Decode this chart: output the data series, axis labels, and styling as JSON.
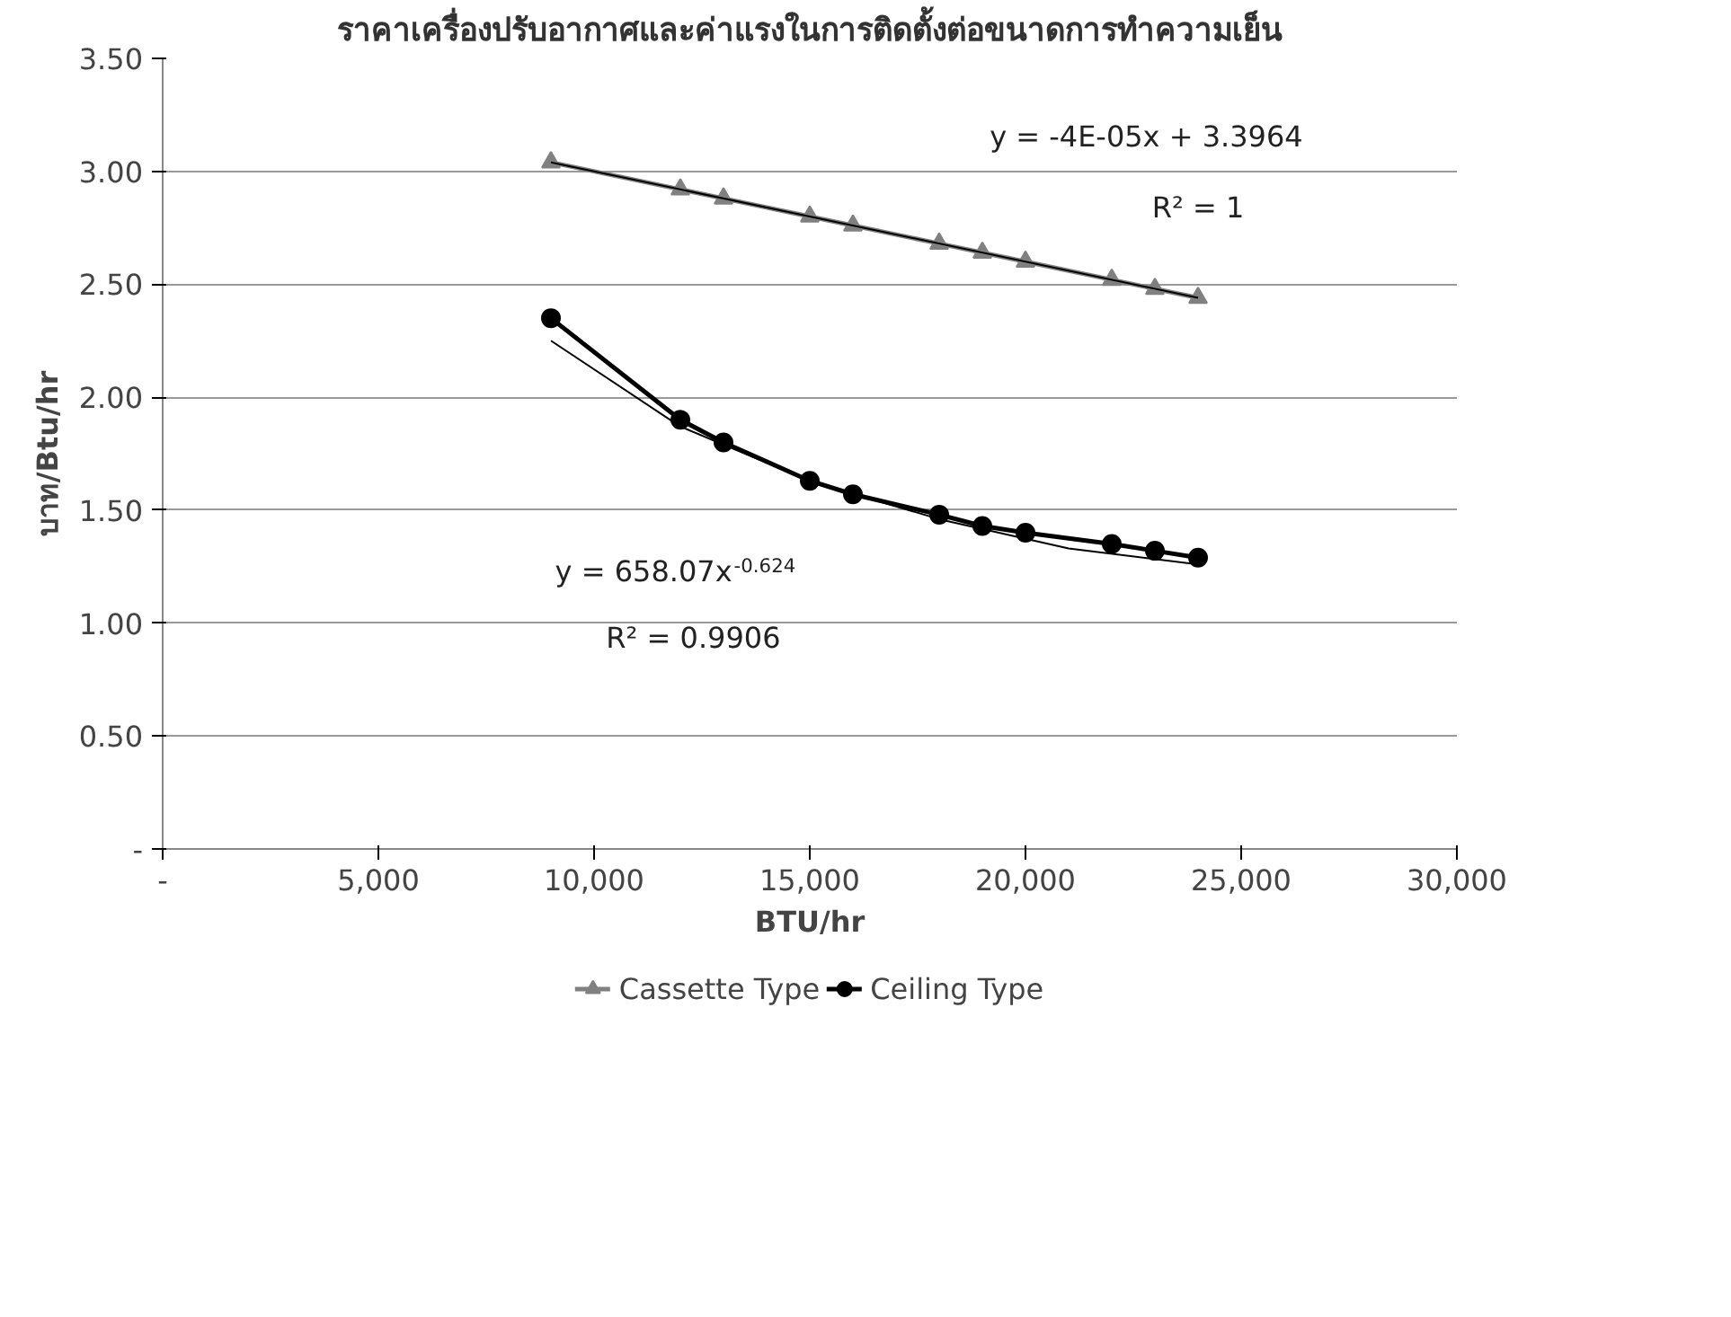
{
  "chart_data": {
    "type": "line",
    "title": "ราคาเครื่องปรับอากาศและค่าแรงในการติดตั้งต่อขนาดการทำความเย็น",
    "xlabel": "BTU/hr",
    "ylabel": "บาท/Btu/hr",
    "x": [
      9000,
      12000,
      13000,
      15000,
      16000,
      18000,
      19000,
      20000,
      22000,
      23000,
      24000
    ],
    "series": [
      {
        "name": "Cassette Type",
        "color": "#808080",
        "marker": "triangle",
        "values": [
          3.04,
          2.92,
          2.88,
          2.8,
          2.76,
          2.68,
          2.64,
          2.6,
          2.52,
          2.48,
          2.44
        ]
      },
      {
        "name": "Ceiling Type",
        "color": "#000000",
        "marker": "circle",
        "values": [
          2.35,
          1.9,
          1.8,
          1.63,
          1.57,
          1.48,
          1.43,
          1.4,
          1.35,
          1.32,
          1.29
        ]
      },
      {
        "color": "#000000",
        "marker": "none",
        "x": [
          9000,
          24000
        ],
        "values": [
          3.04,
          2.44
        ]
      },
      {
        "color": "#000000",
        "marker": "none",
        "x": [
          9000,
          12000,
          15000,
          18000,
          21000,
          24000
        ],
        "values": [
          2.25,
          1.87,
          1.63,
          1.46,
          1.33,
          1.26
        ]
      }
    ],
    "xlim": [
      0,
      30000
    ],
    "ylim": [
      0,
      3.5
    ],
    "xticks": [
      {
        "value": 0,
        "label": "-"
      },
      {
        "value": 5000,
        "label": "5,000"
      },
      {
        "value": 10000,
        "label": "10,000"
      },
      {
        "value": 15000,
        "label": "15,000"
      },
      {
        "value": 20000,
        "label": "20,000"
      },
      {
        "value": 25000,
        "label": "25,000"
      },
      {
        "value": 30000,
        "label": "30,000"
      }
    ],
    "yticks": [
      {
        "value": 0,
        "label": "-"
      },
      {
        "value": 0.5,
        "label": "0.50"
      },
      {
        "value": 1.0,
        "label": "1.00"
      },
      {
        "value": 1.5,
        "label": "1.50"
      },
      {
        "value": 2.0,
        "label": "2.00"
      },
      {
        "value": 2.5,
        "label": "2.50"
      },
      {
        "value": 3.0,
        "label": "3.00"
      },
      {
        "value": 3.5,
        "label": "3.50"
      }
    ],
    "annotations": [
      "y = -4E-05x + 3.3964",
      "R² = 1",
      "y = 658.07x$^{-0.624}$",
      "R² = 0.9906"
    ],
    "grid": "y",
    "legend": "bottom"
  }
}
